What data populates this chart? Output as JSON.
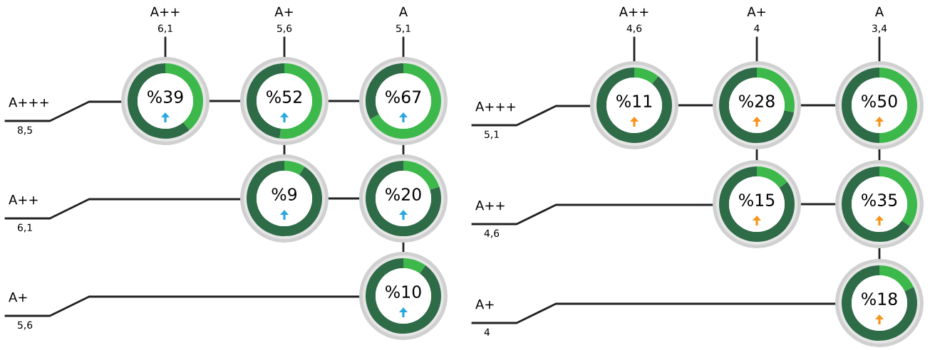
{
  "chart_data": [
    {
      "type": "other",
      "annotations": [
        "A++",
        "6,1",
        "A+",
        "5,6",
        "A",
        "5,1",
        "A+++",
        "8,5",
        "A++",
        "6,1",
        "A+",
        "5,6"
      ]
    },
    {
      "type": "donut",
      "categories": [
        null,
        null
      ],
      "values": [
        39,
        61
      ],
      "colors": [
        "#3db84a",
        "#2e6b47"
      ],
      "value_labels": [
        "%39",
        null
      ]
    },
    {
      "type": "donut",
      "categories": [
        null,
        null
      ],
      "values": [
        52,
        48
      ],
      "colors": [
        "#3db84a",
        "#2e6b47"
      ],
      "value_labels": [
        "%52",
        null
      ]
    },
    {
      "type": "donut",
      "categories": [
        null,
        null
      ],
      "values": [
        67,
        33
      ],
      "colors": [
        "#3db84a",
        "#2e6b47"
      ],
      "value_labels": [
        "%67",
        null
      ]
    },
    {
      "type": "donut",
      "categories": [
        null,
        null
      ],
      "values": [
        9,
        91
      ],
      "colors": [
        "#3db84a",
        "#2e6b47"
      ],
      "value_labels": [
        "%9",
        null
      ]
    },
    {
      "type": "donut",
      "categories": [
        null,
        null
      ],
      "values": [
        20,
        80
      ],
      "colors": [
        "#3db84a",
        "#2e6b47"
      ],
      "value_labels": [
        "%20",
        null
      ]
    },
    {
      "type": "donut",
      "categories": [
        null,
        null
      ],
      "values": [
        10,
        90
      ],
      "colors": [
        "#3db84a",
        "#2e6b47"
      ],
      "value_labels": [
        "%10",
        null
      ]
    },
    {
      "type": "other",
      "annotations": [
        "A++",
        "4,6",
        "A+",
        "4",
        "A",
        "3,4",
        "A+++",
        "5,1",
        "A++",
        "4,6",
        "A+",
        "4"
      ]
    },
    {
      "type": "donut",
      "categories": [
        null,
        null
      ],
      "values": [
        11,
        89
      ],
      "colors": [
        "#3db84a",
        "#2e6b47"
      ],
      "value_labels": [
        "%11",
        null
      ]
    },
    {
      "type": "donut",
      "categories": [
        null,
        null
      ],
      "values": [
        28,
        72
      ],
      "colors": [
        "#3db84a",
        "#2e6b47"
      ],
      "value_labels": [
        "%28",
        null
      ]
    },
    {
      "type": "donut",
      "categories": [
        null,
        null
      ],
      "values": [
        50,
        50
      ],
      "colors": [
        "#3db84a",
        "#2e6b47"
      ],
      "value_labels": [
        "%50",
        null
      ]
    },
    {
      "type": "donut",
      "categories": [
        null,
        null
      ],
      "values": [
        15,
        85
      ],
      "colors": [
        "#3db84a",
        "#2e6b47"
      ],
      "value_labels": [
        "%15",
        null
      ]
    },
    {
      "type": "donut",
      "categories": [
        null,
        null
      ],
      "values": [
        35,
        65
      ],
      "colors": [
        "#3db84a",
        "#2e6b47"
      ],
      "value_labels": [
        "%35",
        null
      ]
    },
    {
      "type": "donut",
      "categories": [
        null,
        null
      ],
      "values": [
        18,
        82
      ],
      "colors": [
        "#3db84a",
        "#2e6b47"
      ],
      "value_labels": [
        "%18",
        null
      ]
    }
  ]
}
